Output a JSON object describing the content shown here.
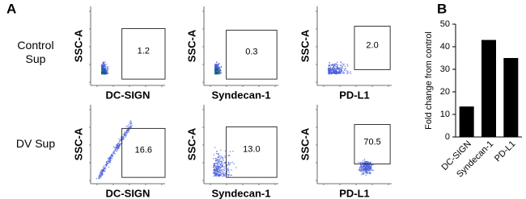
{
  "panel_a": {
    "label": "A",
    "rows": [
      {
        "label": "Control Sup",
        "plots": [
          {
            "x_label": "DC-SIGN",
            "y_label": "SSC-A",
            "gate": "1.2"
          },
          {
            "x_label": "Syndecan-1",
            "y_label": "SSC-A",
            "gate": "0.3"
          },
          {
            "x_label": "PD-L1",
            "y_label": "SSC-A",
            "gate": "2.0"
          }
        ]
      },
      {
        "label": "DV Sup",
        "plots": [
          {
            "x_label": "DC-SIGN",
            "y_label": "SSC-A",
            "gate": "16.6"
          },
          {
            "x_label": "Syndecan-1",
            "y_label": "SSC-A",
            "gate": "13.0"
          },
          {
            "x_label": "PD-L1",
            "y_label": "SSC-A",
            "gate": "70.5"
          }
        ]
      }
    ]
  },
  "chart_data": {
    "type": "bar",
    "panel_label": "B",
    "y_label": "Fold change from control",
    "categories": [
      "DC-SIGN",
      "Syndecan-1",
      "PD-L1"
    ],
    "values": [
      13.5,
      43,
      35
    ],
    "color": "#000000",
    "ylim": [
      0,
      50
    ],
    "yticks": [
      0,
      10,
      20,
      30,
      40,
      50
    ]
  }
}
